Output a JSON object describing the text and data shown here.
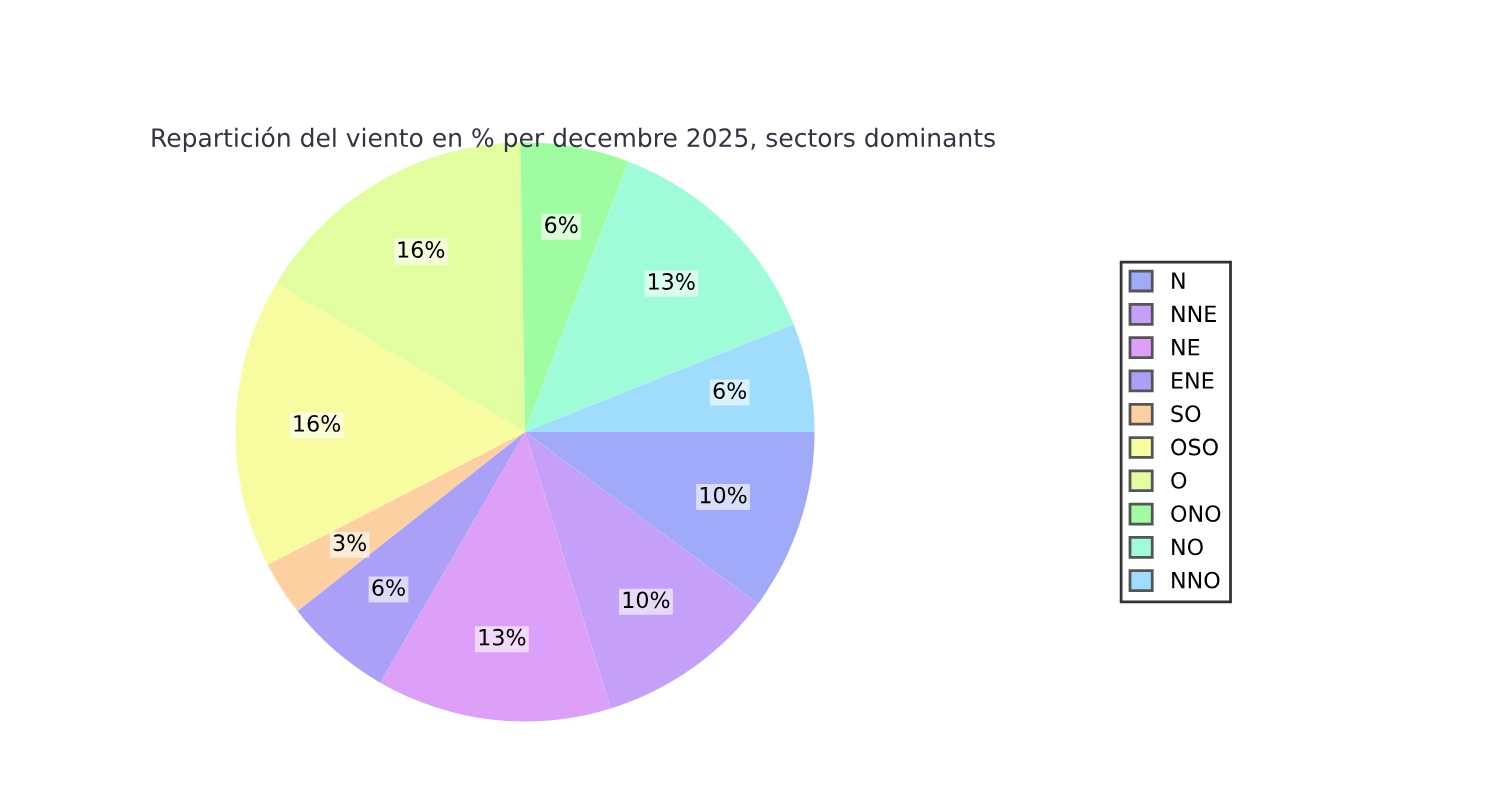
{
  "chart_data": {
    "type": "pie",
    "title": "Repartición del viento en % per decembre 2025, sectors dominants",
    "categories": [
      "N",
      "NNE",
      "NE",
      "ENE",
      "SO",
      "OSO",
      "O",
      "ONO",
      "NO",
      "NNO"
    ],
    "values": [
      10,
      10,
      13,
      6,
      3,
      16,
      16,
      6,
      13,
      6
    ],
    "value_labels": [
      "10%",
      "10%",
      "13%",
      "6%",
      "3%",
      "16%",
      "16%",
      "6%",
      "13%",
      "6%"
    ],
    "colors": [
      "#a0aaf8",
      "#c4a0f8",
      "#dca0f8",
      "#aaa0f8",
      "#fcd0a0",
      "#f8fca0",
      "#e2fca0",
      "#a0fca0",
      "#a0fcd8",
      "#a0dcfc"
    ],
    "legend": "right"
  }
}
